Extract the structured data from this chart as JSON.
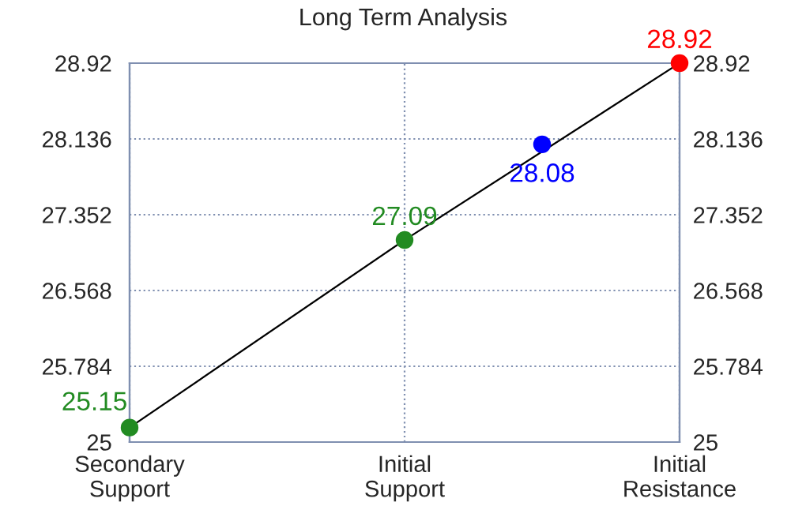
{
  "chart_data": {
    "type": "line",
    "title": "Long Term Analysis",
    "categories": [
      "Secondary\nSupport",
      null,
      "Initial\nSupport",
      null,
      "Initial\nResistance"
    ],
    "ylim": [
      25,
      28.92
    ],
    "yticks": [
      25,
      25.784,
      26.568,
      27.352,
      28.136,
      28.92
    ],
    "y2lim": [
      25,
      28.92
    ],
    "y2ticks": [
      25,
      25.784,
      26.568,
      27.352,
      28.136,
      28.92
    ],
    "series": [
      {
        "color": "#000000",
        "values": [
          25.15,
          null,
          27.09,
          null,
          28.92
        ]
      },
      {
        "type": "scatter",
        "colors": [
          "#228b22",
          null,
          "#228b22",
          "#0000ff",
          "#ff0000"
        ],
        "values": [
          25.15,
          null,
          27.09,
          28.08,
          28.92
        ],
        "value_labels": [
          "25.15",
          null,
          "27.09",
          "28.08",
          "28.92"
        ]
      }
    ],
    "grid": true
  }
}
